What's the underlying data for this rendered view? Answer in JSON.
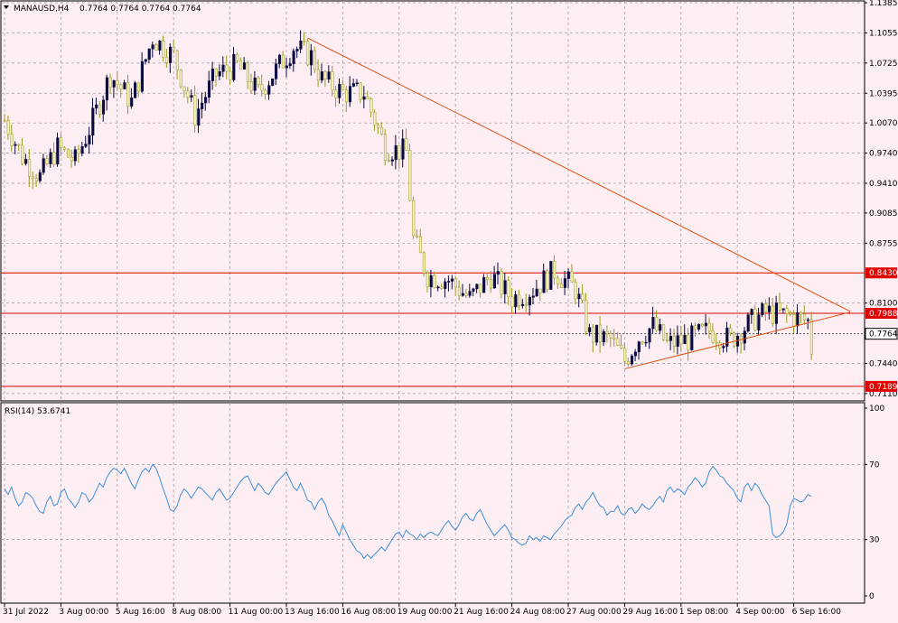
{
  "colors": {
    "background": "#fdeef4",
    "grid": "#9a9a9a",
    "bull_body": "#0a0a40",
    "bear_body": "#f4f0c0",
    "wick_bull": "#0a0a40",
    "wick_bear": "#9a9a20",
    "trendline": "#e05010",
    "hline": "#e00000",
    "current_line": "#3a3a3a",
    "rsi": "#3f8fd8"
  },
  "header": {
    "symbol_label": "MANAUSD,H4",
    "ohlc_label": "0.7764 0.7764 0.7764 0.7764",
    "menu_icon": "triangle-down-icon"
  },
  "rsi_header": {
    "label": "RSI(14) 53.6741"
  },
  "chart_data": [
    {
      "type": "candlestick",
      "title": "MANAUSD,H4",
      "ylim": [
        0.703,
        1.1405
      ],
      "y_ticks": [
        "1.1385",
        "1.1055",
        "1.0725",
        "1.0395",
        "1.0070",
        "0.9740",
        "0.9410",
        "0.9085",
        "0.8755",
        "0.8100",
        "0.7440",
        "0.7110"
      ],
      "x_ticks": [
        "31 Jul 2022",
        "3 Aug 00:00",
        "5 Aug 16:00",
        "8 Aug 08:00",
        "11 Aug 00:00",
        "13 Aug 16:00",
        "16 Aug 08:00",
        "19 Aug 00:00",
        "21 Aug 16:00",
        "24 Aug 08:00",
        "27 Aug 00:00",
        "29 Aug 16:00",
        "1 Sep 08:00",
        "4 Sep 00:00",
        "6 Sep 16:00"
      ],
      "bars_per_tick": 16,
      "path_anchors": [
        [
          0,
          1.01
        ],
        [
          5,
          0.97
        ],
        [
          10,
          0.948
        ],
        [
          15,
          0.98
        ],
        [
          20,
          0.965
        ],
        [
          24,
          1.0
        ],
        [
          30,
          1.06
        ],
        [
          36,
          1.03
        ],
        [
          42,
          1.1
        ],
        [
          48,
          1.08
        ],
        [
          54,
          1.015
        ],
        [
          60,
          1.06
        ],
        [
          66,
          1.07
        ],
        [
          72,
          1.04
        ],
        [
          78,
          1.07
        ],
        [
          82,
          1.09
        ],
        [
          87,
          1.08
        ],
        [
          90,
          1.055
        ],
        [
          96,
          1.04
        ],
        [
          102,
          1.04
        ],
        [
          108,
          0.98
        ],
        [
          114,
          0.975
        ],
        [
          116,
          0.88
        ],
        [
          120,
          0.84
        ],
        [
          126,
          0.835
        ],
        [
          132,
          0.815
        ],
        [
          138,
          0.84
        ],
        [
          144,
          0.815
        ],
        [
          150,
          0.825
        ],
        [
          156,
          0.845
        ],
        [
          162,
          0.825
        ],
        [
          166,
          0.775
        ],
        [
          172,
          0.77
        ],
        [
          176,
          0.747
        ],
        [
          180,
          0.772
        ],
        [
          184,
          0.785
        ],
        [
          188,
          0.765
        ],
        [
          194,
          0.77
        ],
        [
          200,
          0.78
        ],
        [
          206,
          0.77
        ],
        [
          212,
          0.79
        ],
        [
          216,
          0.8
        ],
        [
          224,
          0.795
        ],
        [
          228,
          0.79
        ],
        [
          230,
          0.73
        ],
        [
          234,
          0.73
        ],
        [
          238,
          0.76
        ],
        [
          240,
          0.7764
        ]
      ],
      "last_price": "0.7764",
      "horizontal_levels": [
        {
          "name": "resistance-0.8430",
          "value": 0.843,
          "label": "0.8430"
        },
        {
          "name": "resistance-0.7988",
          "value": 0.7988,
          "label": "0.7988"
        },
        {
          "name": "support-0.7189",
          "value": 0.7189,
          "label": "0.7189"
        }
      ],
      "trendlines": [
        {
          "name": "downtrend-line",
          "from": [
            86,
            1.1
          ],
          "to": [
            240,
            0.801
          ]
        },
        {
          "name": "uptrend-line",
          "from": [
            176,
            0.738
          ],
          "to": [
            240,
            0.8
          ]
        }
      ]
    },
    {
      "type": "line",
      "title": "RSI(14) 53.6741",
      "ylim": [
        0,
        100
      ],
      "y_ticks": [
        "100",
        "70",
        "30",
        "0"
      ],
      "levels": [
        70,
        30
      ],
      "values": [
        57,
        54,
        58,
        52,
        48,
        50,
        55,
        54,
        52,
        48,
        45,
        44,
        50,
        53,
        48,
        49,
        55,
        57,
        52,
        50,
        47,
        50,
        55,
        54,
        50,
        52,
        56,
        60,
        58,
        63,
        66,
        68,
        67,
        65,
        68,
        64,
        60,
        57,
        62,
        66,
        68,
        66,
        70,
        68,
        63,
        57,
        52,
        46,
        45,
        48,
        54,
        57,
        55,
        52,
        55,
        58,
        57,
        55,
        53,
        51,
        55,
        57,
        54,
        51,
        52,
        55,
        58,
        61,
        63,
        64,
        60,
        56,
        60,
        58,
        55,
        54,
        57,
        60,
        62,
        64,
        66,
        62,
        58,
        56,
        60,
        56,
        51,
        50,
        46,
        50,
        52,
        49,
        43,
        40,
        36,
        32,
        38,
        34,
        30,
        27,
        24,
        23,
        20,
        22,
        20,
        22,
        24,
        26,
        24,
        27,
        30,
        33,
        34,
        31,
        35,
        33,
        32,
        30,
        33,
        31,
        33,
        34,
        33,
        32,
        35,
        38,
        40,
        37,
        35,
        38,
        42,
        44,
        41,
        40,
        44,
        46,
        42,
        38,
        35,
        32,
        34,
        36,
        38,
        35,
        31,
        30,
        28,
        27,
        28,
        32,
        30,
        31,
        29,
        32,
        31,
        30,
        33,
        35,
        37,
        40,
        42,
        43,
        47,
        49,
        46,
        50,
        52,
        55,
        51,
        48,
        47,
        43,
        45,
        45,
        48,
        44,
        43,
        46,
        47,
        44,
        46,
        49,
        47,
        46,
        48,
        51,
        53,
        50,
        56,
        58,
        55,
        57,
        56,
        54,
        58,
        60,
        63,
        61,
        58,
        60,
        66,
        69,
        67,
        64,
        63,
        60,
        58,
        56,
        52,
        50,
        58,
        60,
        56,
        60,
        58,
        54,
        51,
        48,
        33,
        31,
        32,
        34,
        38,
        48,
        52,
        51,
        50,
        51,
        54,
        53
      ]
    }
  ]
}
